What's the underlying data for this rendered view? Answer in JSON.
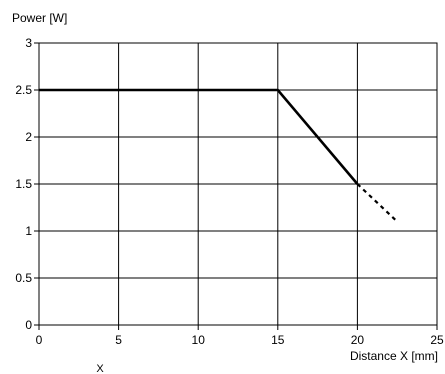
{
  "chart_data": {
    "type": "line",
    "title": "",
    "xlabel": "Distance X [mm]",
    "ylabel": "Power [W]",
    "xlim": [
      0,
      25
    ],
    "ylim": [
      0,
      3
    ],
    "grid": true,
    "x_ticks": [
      0,
      5,
      10,
      15,
      20,
      25
    ],
    "y_ticks": [
      0,
      0.5,
      1,
      1.5,
      2,
      2.5,
      3
    ],
    "x_tick_labels": [
      "0",
      "5",
      "10",
      "15",
      "20",
      "25"
    ],
    "y_tick_labels": [
      "0",
      "0.5",
      "1",
      "1.5",
      "2",
      "2.5",
      "3"
    ],
    "series": [
      {
        "style": "solid",
        "color": "#000000",
        "x": [
          0,
          15,
          20
        ],
        "y": [
          2.5,
          2.5,
          1.5
        ]
      },
      {
        "style": "dotted",
        "color": "#000000",
        "x": [
          20,
          22.5
        ],
        "y": [
          1.5,
          1.1
        ]
      }
    ],
    "bottom_text": "X"
  }
}
